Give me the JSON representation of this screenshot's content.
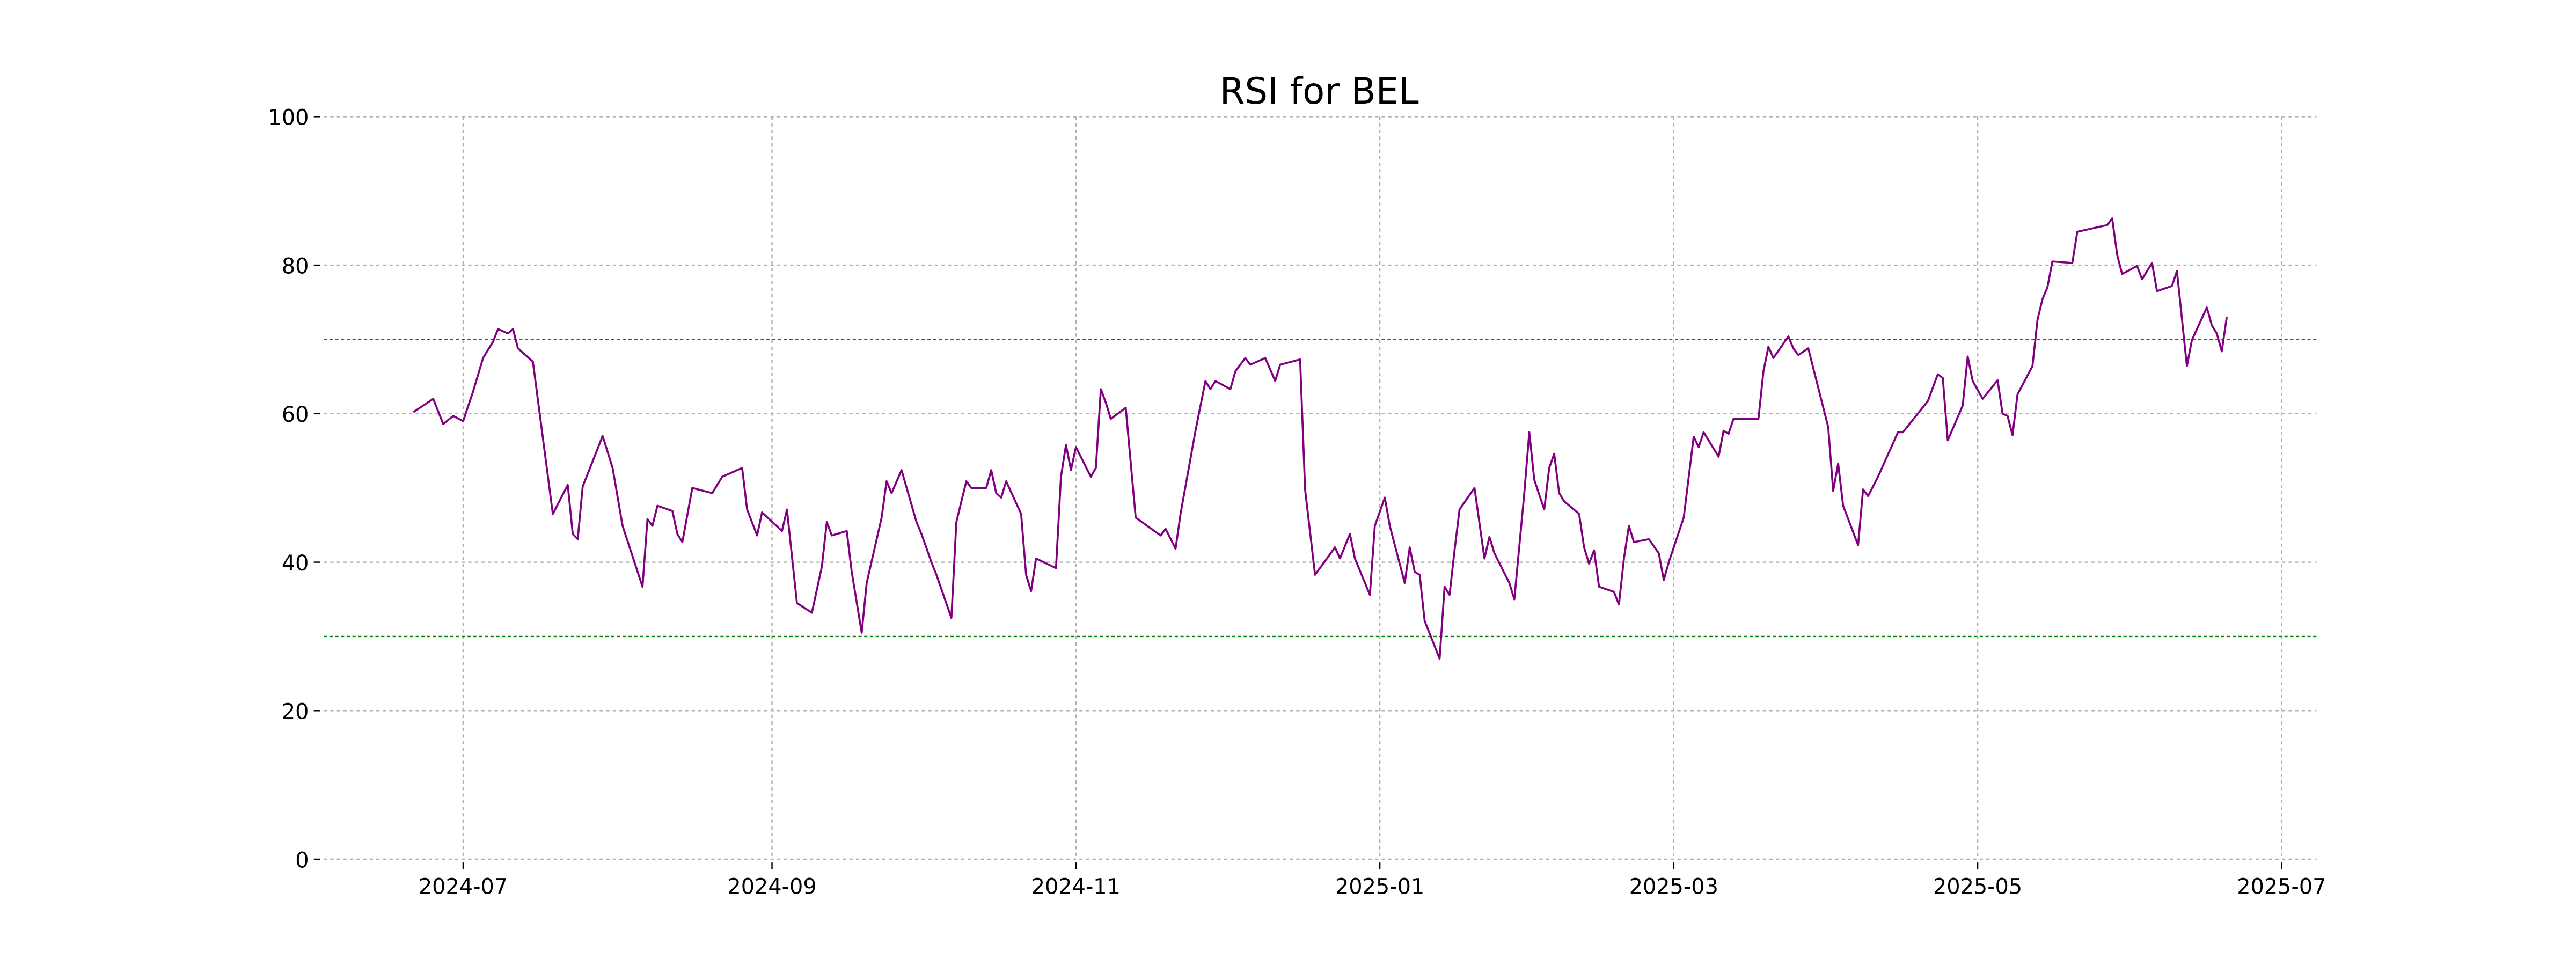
{
  "chart_data": {
    "type": "line",
    "title": "RSI for BEL",
    "color": "purple",
    "x": [
      "2024-06-21",
      "2024-06-25",
      "2024-06-27",
      "2024-06-29",
      "2024-07-01",
      "2024-07-03",
      "2024-07-05",
      "2024-07-07",
      "2024-07-08",
      "2024-07-10",
      "2024-07-11",
      "2024-07-12",
      "2024-07-15",
      "2024-07-19",
      "2024-07-22",
      "2024-07-23",
      "2024-07-24",
      "2024-07-25",
      "2024-07-29",
      "2024-07-31",
      "2024-08-02",
      "2024-08-06",
      "2024-08-07",
      "2024-08-08",
      "2024-08-09",
      "2024-08-12",
      "2024-08-13",
      "2024-08-14",
      "2024-08-16",
      "2024-08-20",
      "2024-08-22",
      "2024-08-23",
      "2024-08-26",
      "2024-08-27",
      "2024-08-29",
      "2024-08-30",
      "2024-09-03",
      "2024-09-04",
      "2024-09-06",
      "2024-09-09",
      "2024-09-11",
      "2024-09-12",
      "2024-09-13",
      "2024-09-16",
      "2024-09-17",
      "2024-09-19",
      "2024-09-20",
      "2024-09-23",
      "2024-09-24",
      "2024-09-25",
      "2024-09-27",
      "2024-09-30",
      "2024-10-01",
      "2024-10-03",
      "2024-10-04",
      "2024-10-07",
      "2024-10-08",
      "2024-10-10",
      "2024-10-11",
      "2024-10-14",
      "2024-10-15",
      "2024-10-16",
      "2024-10-17",
      "2024-10-18",
      "2024-10-21",
      "2024-10-22",
      "2024-10-23",
      "2024-10-24",
      "2024-10-28",
      "2024-10-29",
      "2024-10-30",
      "2024-10-31",
      "2024-11-01",
      "2024-11-04",
      "2024-11-05",
      "2024-11-06",
      "2024-11-07",
      "2024-11-08",
      "2024-11-11",
      "2024-11-13",
      "2024-11-18",
      "2024-11-19",
      "2024-11-21",
      "2024-11-22",
      "2024-11-25",
      "2024-11-27",
      "2024-11-28",
      "2024-11-29",
      "2024-12-02",
      "2024-12-03",
      "2024-12-05",
      "2024-12-06",
      "2024-12-09",
      "2024-12-11",
      "2024-12-12",
      "2024-12-16",
      "2024-12-17",
      "2024-12-19",
      "2024-12-23",
      "2024-12-24",
      "2024-12-26",
      "2024-12-27",
      "2024-12-30",
      "2024-12-31",
      "2025-01-02",
      "2025-01-03",
      "2025-01-06",
      "2025-01-07",
      "2025-01-08",
      "2025-01-09",
      "2025-01-10",
      "2025-01-13",
      "2025-01-14",
      "2025-01-15",
      "2025-01-16",
      "2025-01-17",
      "2025-01-20",
      "2025-01-22",
      "2025-01-23",
      "2025-01-24",
      "2025-01-27",
      "2025-01-28",
      "2025-01-30",
      "2025-01-31",
      "2025-02-01",
      "2025-02-03",
      "2025-02-04",
      "2025-02-05",
      "2025-02-06",
      "2025-02-07",
      "2025-02-10",
      "2025-02-11",
      "2025-02-12",
      "2025-02-13",
      "2025-02-14",
      "2025-02-17",
      "2025-02-18",
      "2025-02-19",
      "2025-02-20",
      "2025-02-21",
      "2025-02-24",
      "2025-02-26",
      "2025-02-27",
      "2025-02-28",
      "2025-03-03",
      "2025-03-05",
      "2025-03-06",
      "2025-03-07",
      "2025-03-10",
      "2025-03-11",
      "2025-03-12",
      "2025-03-13",
      "2025-03-18",
      "2025-03-19",
      "2025-03-20",
      "2025-03-21",
      "2025-03-24",
      "2025-03-25",
      "2025-03-26",
      "2025-03-28",
      "2025-04-01",
      "2025-04-02",
      "2025-04-03",
      "2025-04-04",
      "2025-04-07",
      "2025-04-08",
      "2025-04-09",
      "2025-04-11",
      "2025-04-15",
      "2025-04-16",
      "2025-04-21",
      "2025-04-23",
      "2025-04-24",
      "2025-04-25",
      "2025-04-28",
      "2025-04-29",
      "2025-04-30",
      "2025-05-02",
      "2025-05-05",
      "2025-05-06",
      "2025-05-07",
      "2025-05-08",
      "2025-05-09",
      "2025-05-12",
      "2025-05-13",
      "2025-05-14",
      "2025-05-15",
      "2025-05-16",
      "2025-05-20",
      "2025-05-21",
      "2025-05-27",
      "2025-05-28",
      "2025-05-29",
      "2025-05-30",
      "2025-06-02",
      "2025-06-03",
      "2025-06-05",
      "2025-06-06",
      "2025-06-09",
      "2025-06-10",
      "2025-06-12",
      "2025-06-13",
      "2025-06-16",
      "2025-06-17",
      "2025-06-18",
      "2025-06-19",
      "2025-06-20"
    ],
    "values": [
      60.2,
      62,
      58.6,
      59.7,
      59,
      63,
      67.5,
      69.7,
      71.4,
      70.8,
      71.4,
      68.8,
      67,
      46.5,
      50.4,
      43.8,
      43.1,
      50.2,
      57,
      52.7,
      44.9,
      36.7,
      45.8,
      44.9,
      47.6,
      46.9,
      43.8,
      42.7,
      50,
      49.3,
      51.5,
      51.8,
      52.7,
      47.1,
      43.6,
      46.7,
      44.2,
      47.1,
      34.5,
      33.2,
      39.4,
      45.4,
      43.6,
      44.2,
      38.7,
      30.5,
      37.2,
      46,
      50.9,
      49.3,
      52.4,
      45.4,
      43.8,
      40,
      38.3,
      32.5,
      45.4,
      50.9,
      50,
      50,
      52.4,
      49.3,
      48.7,
      50.9,
      46.5,
      38.3,
      36.1,
      40.5,
      39.2,
      51.5,
      55.8,
      52.4,
      55.5,
      51.5,
      52.7,
      63.3,
      61.5,
      59.3,
      60.8,
      46,
      43.6,
      44.5,
      41.8,
      46.5,
      57.7,
      64.4,
      63.3,
      64.4,
      63.3,
      65.7,
      67.5,
      66.6,
      67.5,
      64.4,
      66.6,
      67.3,
      49.8,
      38.3,
      42,
      40.5,
      43.8,
      40.5,
      35.6,
      44.9,
      48.7,
      44.9,
      37.2,
      42,
      38.7,
      38.3,
      32.1,
      27,
      36.7,
      35.6,
      41.6,
      47.1,
      50,
      40.5,
      43.4,
      41.2,
      37.2,
      35,
      49.3,
      57.5,
      51.1,
      47.1,
      52.7,
      54.6,
      49.3,
      48.2,
      46.5,
      42,
      39.8,
      41.6,
      36.7,
      36,
      34.3,
      40.5,
      44.9,
      42.7,
      43.1,
      41.2,
      37.6,
      40,
      46,
      56.9,
      55.5,
      57.5,
      54.2,
      57.7,
      57.3,
      59.3,
      59.3,
      65.7,
      69,
      67.5,
      70.4,
      68.8,
      67.9,
      68.8,
      58.2,
      49.6,
      53.3,
      47.6,
      42.3,
      49.8,
      48.9,
      51.5,
      57.5,
      57.5,
      61.7,
      65.3,
      64.8,
      56.4,
      61.1,
      67.7,
      64.4,
      62,
      64.5,
      60,
      59.7,
      57.1,
      62.6,
      66.4,
      72.6,
      75.4,
      77,
      80.5,
      80.3,
      84.5,
      85.4,
      86.3,
      81.4,
      78.8,
      79.9,
      78.1,
      80.3,
      76.5,
      77.2,
      79.2,
      66.4,
      69.9,
      74.3,
      71.9,
      70.8,
      68.4,
      73
    ],
    "xlim": [
      "2024-06-03",
      "2025-07-08"
    ],
    "xticks": [
      {
        "value": "2024-07-01",
        "label": "2024-07"
      },
      {
        "value": "2024-09-01",
        "label": "2024-09"
      },
      {
        "value": "2024-11-01",
        "label": "2024-11"
      },
      {
        "value": "2025-01-01",
        "label": "2025-01"
      },
      {
        "value": "2025-03-01",
        "label": "2025-03"
      },
      {
        "value": "2025-05-01",
        "label": "2025-05"
      },
      {
        "value": "2025-07-01",
        "label": "2025-07"
      }
    ],
    "ylim": [
      0,
      100
    ],
    "yticks": [
      0,
      20,
      40,
      60,
      80,
      100
    ],
    "grid": true,
    "hlines": [
      {
        "value": 70,
        "color": "red"
      },
      {
        "value": 30,
        "color": "green"
      }
    ]
  }
}
